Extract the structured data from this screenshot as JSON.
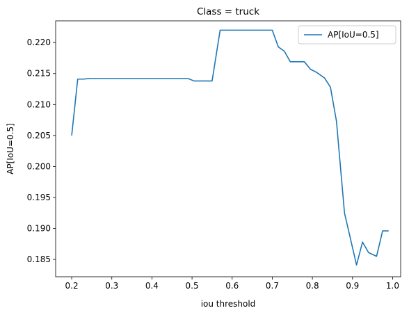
{
  "chart_data": {
    "type": "line",
    "title": "Class = truck",
    "xlabel": "iou threshold",
    "ylabel": "AP[IoU=0.5]",
    "xlim": [
      0.16,
      1.02
    ],
    "ylim": [
      0.1822,
      0.2235
    ],
    "xticks": [
      0.2,
      0.3,
      0.4,
      0.5,
      0.6,
      0.7,
      0.8,
      0.9,
      1.0
    ],
    "xtick_labels": [
      "0.2",
      "0.3",
      "0.4",
      "0.5",
      "0.6",
      "0.7",
      "0.8",
      "0.9",
      "1.0"
    ],
    "yticks": [
      0.185,
      0.19,
      0.195,
      0.2,
      0.205,
      0.21,
      0.215,
      0.22
    ],
    "ytick_labels": [
      "0.185",
      "0.190",
      "0.195",
      "0.200",
      "0.205",
      "0.210",
      "0.215",
      "0.220"
    ],
    "grid": false,
    "legend_position": "top-right",
    "series": [
      {
        "name": "AP[IoU=0.5]",
        "color": "#1f77b4",
        "x": [
          0.2,
          0.215,
          0.23,
          0.245,
          0.26,
          0.275,
          0.29,
          0.305,
          0.32,
          0.335,
          0.35,
          0.365,
          0.38,
          0.395,
          0.41,
          0.425,
          0.44,
          0.455,
          0.47,
          0.485,
          0.49,
          0.505,
          0.52,
          0.535,
          0.55,
          0.57,
          0.585,
          0.6,
          0.615,
          0.63,
          0.645,
          0.66,
          0.675,
          0.69,
          0.7,
          0.715,
          0.73,
          0.745,
          0.76,
          0.78,
          0.795,
          0.81,
          0.83,
          0.845,
          0.86,
          0.88,
          0.895,
          0.91,
          0.925,
          0.94,
          0.96,
          0.975,
          0.99
        ],
        "y": [
          0.205,
          0.2141,
          0.2141,
          0.2142,
          0.2142,
          0.2142,
          0.2142,
          0.2142,
          0.2142,
          0.2142,
          0.2142,
          0.2142,
          0.2142,
          0.2142,
          0.2142,
          0.2142,
          0.2142,
          0.2142,
          0.2142,
          0.2142,
          0.2142,
          0.2138,
          0.2138,
          0.2138,
          0.2138,
          0.222,
          0.222,
          0.222,
          0.222,
          0.222,
          0.222,
          0.222,
          0.222,
          0.222,
          0.222,
          0.2193,
          0.2186,
          0.2169,
          0.2169,
          0.2169,
          0.2157,
          0.2152,
          0.2143,
          0.2128,
          0.2073,
          0.1925,
          0.1883,
          0.1841,
          0.1878,
          0.1861,
          0.1855,
          0.1896,
          0.1896
        ]
      }
    ]
  }
}
